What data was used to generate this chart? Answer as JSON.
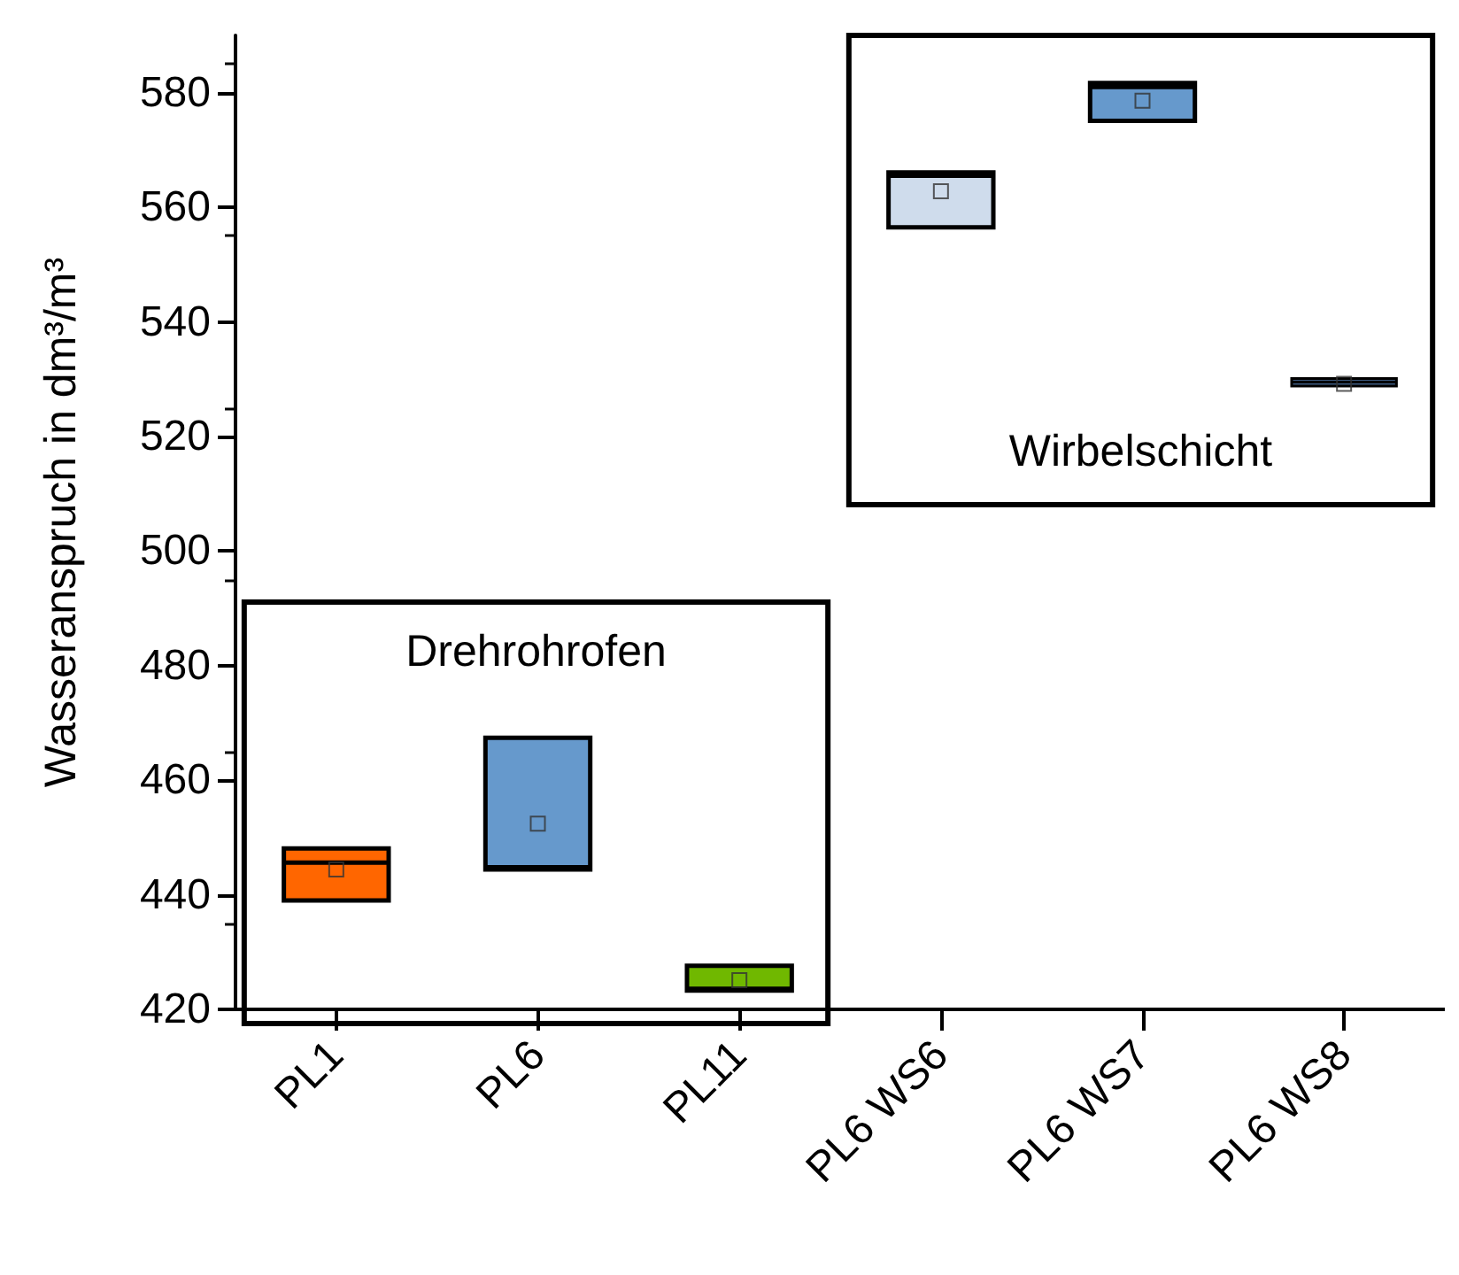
{
  "chart_data": {
    "type": "box",
    "ylabel": "Wasseranspruch in dm³/m³",
    "categories": [
      "PL1",
      "PL6",
      "PL11",
      "PL6 WS6",
      "PL6 WS7",
      "PL6 WS8"
    ],
    "colors": [
      "#ff6600",
      "#6699cc",
      "#70b800",
      "#cfdcec",
      "#6699cc",
      "#3d5a80"
    ],
    "boxes": [
      {
        "low": 439,
        "q1": 439,
        "median": 445.6,
        "q3": 448.1,
        "high": 448.1,
        "mean": 444.4
      },
      {
        "low": 444.4,
        "q1": 444.4,
        "median": 444.8,
        "q3": 467.4,
        "high": 467.4,
        "mean": 452.4
      },
      {
        "low": 423.3,
        "q1": 423.3,
        "median": 423.6,
        "q3": 427.6,
        "high": 427.6,
        "mean": 425.1
      },
      {
        "low": 556.5,
        "q1": 556.5,
        "median": 565.5,
        "q3": 566.1,
        "high": 566.1,
        "mean": 562.8
      },
      {
        "low": 575.1,
        "q1": 575.1,
        "median": 581,
        "q3": 581.7,
        "high": 581.7,
        "mean": 578.6
      },
      {
        "low": 528.8,
        "q1": 528.8,
        "median": 529.5,
        "q3": 530.1,
        "high": 530.1,
        "mean": 529.2
      }
    ],
    "ylim": [
      420,
      590
    ],
    "yticks": [
      420,
      440,
      460,
      480,
      500,
      520,
      540,
      560,
      580
    ],
    "annotations": [
      "Drehrohrofen",
      "Wirbelschicht"
    ],
    "marker": "square",
    "grid": false
  }
}
